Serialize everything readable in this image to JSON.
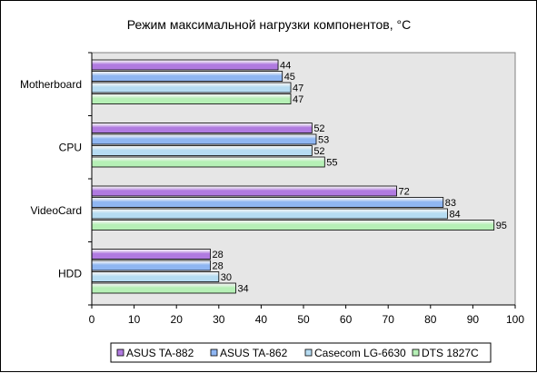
{
  "chart_data": {
    "type": "bar",
    "orientation": "horizontal",
    "title": "Режим максимальной нагрузки компонентов, °C",
    "xlabel": "",
    "ylabel": "",
    "xlim": [
      0,
      100
    ],
    "x_ticks": [
      "0",
      "10",
      "20",
      "30",
      "40",
      "50",
      "60",
      "70",
      "80",
      "90",
      "100"
    ],
    "categories": [
      "Motherboard",
      "CPU",
      "VideoCard",
      "HDD"
    ],
    "series": [
      {
        "name": "ASUS TA-882",
        "color": "#b07ae0",
        "values": [
          44,
          52,
          72,
          28
        ]
      },
      {
        "name": "ASUS TA-862",
        "color": "#8fb6f2",
        "values": [
          45,
          53,
          83,
          28
        ]
      },
      {
        "name": "Casecom LG-6630",
        "color": "#b6dcf2",
        "values": [
          47,
          52,
          84,
          30
        ]
      },
      {
        "name": "DTS 1827C",
        "color": "#b6f0b6",
        "values": [
          47,
          55,
          95,
          34
        ]
      }
    ],
    "data_labels": true,
    "grid": false,
    "plot_background": "#e6e6e6",
    "legend_position": "bottom"
  }
}
